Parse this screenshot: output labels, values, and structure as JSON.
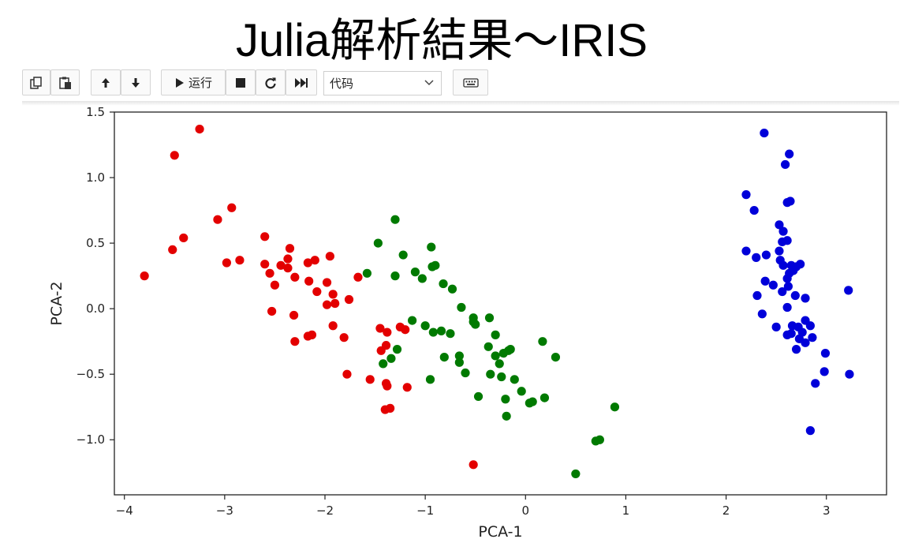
{
  "slide": {
    "title": "Julia解析結果～IRIS"
  },
  "toolbar": {
    "buttons": [
      {
        "icon": "copy-icon"
      },
      {
        "icon": "paste-icon"
      },
      {
        "icon": "arrow-up-icon"
      },
      {
        "icon": "arrow-down-icon"
      },
      {
        "icon": "play-icon",
        "label": "运行"
      },
      {
        "icon": "stop-icon"
      },
      {
        "icon": "restart-icon"
      },
      {
        "icon": "fast-forward-icon"
      },
      {
        "icon": "keyboard-icon"
      }
    ],
    "run_label": "运行",
    "cell_type": {
      "selected": "代码"
    }
  },
  "chart_data": {
    "type": "scatter",
    "title": "",
    "xlabel": "PCA-1",
    "ylabel": "PCA-2",
    "xlim": [
      -4.1,
      3.6
    ],
    "ylim": [
      -1.42,
      1.5
    ],
    "xticks": [
      -4,
      -3,
      -2,
      -1,
      0,
      1,
      2,
      3
    ],
    "xtick_labels": [
      "−4",
      "−3",
      "−2",
      "−1",
      "0",
      "1",
      "2",
      "3"
    ],
    "yticks": [
      -1.0,
      -0.5,
      0.0,
      0.5,
      1.0,
      1.5
    ],
    "ytick_labels": [
      "−1.0",
      "−0.5",
      "0.0",
      "0.5",
      "1.0",
      "1.5"
    ],
    "grid": false,
    "legend": "none",
    "series": [
      {
        "color": "#e30000",
        "points": [
          [
            -3.8,
            0.25
          ],
          [
            -3.5,
            1.17
          ],
          [
            -3.25,
            1.37
          ],
          [
            -3.52,
            0.45
          ],
          [
            -3.41,
            0.54
          ],
          [
            -3.07,
            0.68
          ],
          [
            -2.93,
            0.77
          ],
          [
            -2.98,
            0.35
          ],
          [
            -2.85,
            0.37
          ],
          [
            -2.6,
            0.55
          ],
          [
            -2.6,
            0.34
          ],
          [
            -2.55,
            0.27
          ],
          [
            -2.44,
            0.33
          ],
          [
            -2.37,
            0.38
          ],
          [
            -2.37,
            0.31
          ],
          [
            -2.35,
            0.46
          ],
          [
            -2.17,
            0.35
          ],
          [
            -2.1,
            0.37
          ],
          [
            -1.95,
            0.4
          ],
          [
            -2.5,
            0.18
          ],
          [
            -2.3,
            0.24
          ],
          [
            -2.16,
            0.21
          ],
          [
            -2.08,
            0.13
          ],
          [
            -1.98,
            0.2
          ],
          [
            -1.92,
            0.11
          ],
          [
            -1.9,
            0.04
          ],
          [
            -1.98,
            0.03
          ],
          [
            -1.76,
            0.07
          ],
          [
            -1.67,
            0.24
          ],
          [
            -2.53,
            -0.02
          ],
          [
            -2.31,
            -0.05
          ],
          [
            -2.3,
            -0.25
          ],
          [
            -2.17,
            -0.21
          ],
          [
            -2.13,
            -0.2
          ],
          [
            -1.92,
            -0.13
          ],
          [
            -1.81,
            -0.22
          ],
          [
            -1.78,
            -0.5
          ],
          [
            -1.45,
            -0.15
          ],
          [
            -1.38,
            -0.18
          ],
          [
            -1.39,
            -0.28
          ],
          [
            -1.44,
            -0.32
          ],
          [
            -1.25,
            -0.14
          ],
          [
            -1.2,
            -0.16
          ],
          [
            -1.55,
            -0.54
          ],
          [
            -1.39,
            -0.57
          ],
          [
            -1.4,
            -0.77
          ],
          [
            -1.35,
            -0.76
          ],
          [
            -1.38,
            -0.59
          ],
          [
            -1.18,
            -0.6
          ],
          [
            -0.52,
            -1.19
          ]
        ]
      },
      {
        "color": "#007a00",
        "points": [
          [
            -1.3,
            0.68
          ],
          [
            -1.47,
            0.5
          ],
          [
            -1.58,
            0.27
          ],
          [
            -1.22,
            0.41
          ],
          [
            -0.94,
            0.47
          ],
          [
            -1.3,
            0.25
          ],
          [
            -1.1,
            0.28
          ],
          [
            -1.03,
            0.23
          ],
          [
            -0.93,
            0.32
          ],
          [
            -0.9,
            0.33
          ],
          [
            -0.82,
            0.19
          ],
          [
            -0.73,
            0.15
          ],
          [
            -0.64,
            0.01
          ],
          [
            -0.52,
            -0.07
          ],
          [
            -0.5,
            -0.12
          ],
          [
            -1.13,
            -0.09
          ],
          [
            -1.0,
            -0.13
          ],
          [
            -0.92,
            -0.18
          ],
          [
            -0.84,
            -0.17
          ],
          [
            -0.75,
            -0.19
          ],
          [
            -0.52,
            -0.1
          ],
          [
            -0.36,
            -0.07
          ],
          [
            -0.3,
            -0.2
          ],
          [
            -0.15,
            -0.31
          ],
          [
            -1.28,
            -0.31
          ],
          [
            -1.34,
            -0.38
          ],
          [
            -1.42,
            -0.42
          ],
          [
            -0.81,
            -0.37
          ],
          [
            -0.66,
            -0.36
          ],
          [
            -0.66,
            -0.41
          ],
          [
            -0.6,
            -0.49
          ],
          [
            -0.37,
            -0.29
          ],
          [
            -0.3,
            -0.36
          ],
          [
            -0.22,
            -0.34
          ],
          [
            -0.17,
            -0.32
          ],
          [
            -0.26,
            -0.42
          ],
          [
            -0.35,
            -0.5
          ],
          [
            -0.24,
            -0.52
          ],
          [
            -0.95,
            -0.54
          ],
          [
            -0.47,
            -0.67
          ],
          [
            -0.11,
            -0.54
          ],
          [
            -0.2,
            -0.69
          ],
          [
            -0.04,
            -0.63
          ],
          [
            0.04,
            -0.72
          ],
          [
            0.07,
            -0.71
          ],
          [
            0.19,
            -0.68
          ],
          [
            0.17,
            -0.25
          ],
          [
            0.3,
            -0.37
          ],
          [
            -0.19,
            -0.82
          ],
          [
            0.5,
            -1.26
          ],
          [
            0.7,
            -1.01
          ],
          [
            0.74,
            -1.0
          ],
          [
            0.89,
            -0.75
          ]
        ]
      },
      {
        "color": "#0000d9",
        "points": [
          [
            2.38,
            1.34
          ],
          [
            2.63,
            1.18
          ],
          [
            2.59,
            1.1
          ],
          [
            2.2,
            0.87
          ],
          [
            2.28,
            0.75
          ],
          [
            2.61,
            0.81
          ],
          [
            2.64,
            0.82
          ],
          [
            2.53,
            0.64
          ],
          [
            2.57,
            0.59
          ],
          [
            2.61,
            0.52
          ],
          [
            2.56,
            0.51
          ],
          [
            2.53,
            0.44
          ],
          [
            2.2,
            0.44
          ],
          [
            2.3,
            0.39
          ],
          [
            2.4,
            0.41
          ],
          [
            2.54,
            0.37
          ],
          [
            2.57,
            0.33
          ],
          [
            2.65,
            0.33
          ],
          [
            2.7,
            0.32
          ],
          [
            2.74,
            0.34
          ],
          [
            2.61,
            0.23
          ],
          [
            2.67,
            0.29
          ],
          [
            2.63,
            0.27
          ],
          [
            2.39,
            0.21
          ],
          [
            2.47,
            0.18
          ],
          [
            2.62,
            0.17
          ],
          [
            2.31,
            0.1
          ],
          [
            2.56,
            0.13
          ],
          [
            2.69,
            0.1
          ],
          [
            2.79,
            0.08
          ],
          [
            3.22,
            0.14
          ],
          [
            2.61,
            0.01
          ],
          [
            2.36,
            -0.04
          ],
          [
            2.5,
            -0.14
          ],
          [
            2.66,
            -0.13
          ],
          [
            2.72,
            -0.14
          ],
          [
            2.79,
            -0.09
          ],
          [
            2.84,
            -0.13
          ],
          [
            2.76,
            -0.18
          ],
          [
            2.61,
            -0.2
          ],
          [
            2.65,
            -0.19
          ],
          [
            2.73,
            -0.23
          ],
          [
            2.79,
            -0.26
          ],
          [
            2.86,
            -0.22
          ],
          [
            2.7,
            -0.31
          ],
          [
            2.99,
            -0.34
          ],
          [
            2.98,
            -0.48
          ],
          [
            2.89,
            -0.57
          ],
          [
            3.23,
            -0.5
          ],
          [
            2.84,
            -0.93
          ]
        ]
      }
    ]
  }
}
